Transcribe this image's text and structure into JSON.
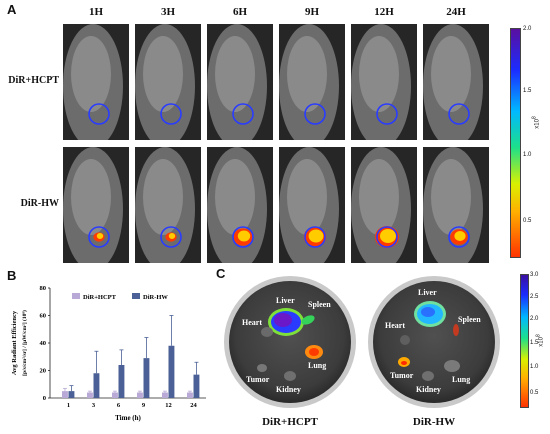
{
  "panel_a": {
    "letter": "A",
    "timepoints": [
      "1H",
      "3H",
      "6H",
      "9H",
      "12H",
      "24H"
    ],
    "rows": [
      {
        "label": "DiR+HCPT",
        "signal": [
          0.0,
          0.0,
          0.0,
          0.0,
          0.0,
          0.0
        ]
      },
      {
        "label": "DiR-HW",
        "signal": [
          0.2,
          0.2,
          0.7,
          0.9,
          1.0,
          0.6
        ]
      }
    ],
    "colorbar": {
      "ticks": [
        "2.0",
        "1.5",
        "1.0",
        "0.5"
      ],
      "unit": "x10",
      "exponent": "8"
    }
  },
  "panel_b": {
    "letter": "B",
    "chart_data": {
      "type": "bar",
      "categories": [
        "1",
        "3",
        "6",
        "9",
        "12",
        "24"
      ],
      "series": [
        {
          "name": "DiR+HCPT",
          "color": "#b9a9d6",
          "values": [
            5,
            4,
            4,
            4,
            4,
            4
          ],
          "errors": [
            2,
            1,
            1,
            1,
            1,
            1
          ]
        },
        {
          "name": "DiR-HW",
          "color": "#4a6096",
          "values": [
            5,
            18,
            24,
            29,
            38,
            17
          ],
          "errors": [
            4,
            16,
            11,
            15,
            22,
            9
          ]
        }
      ],
      "xlabel": "Time (h)",
      "ylabel": "Avg Radiant Efficiency",
      "ylabel2": "[p/s/cm²/sr] / [µW/cm²] (10⁸)",
      "ylim": [
        0,
        80
      ],
      "yticks": [
        "0",
        "20",
        "40",
        "60",
        "80"
      ]
    }
  },
  "panel_c": {
    "letter": "C",
    "dishes": [
      {
        "caption": "DiR+HCPT",
        "labels": {
          "liver": "Liver",
          "spleen": "Spleen",
          "heart": "Heart",
          "lung": "Lung",
          "tumor": "Tumor",
          "kidney": "Kidney"
        }
      },
      {
        "caption": "DiR-HW",
        "labels": {
          "liver": "Liver",
          "spleen": "Spleen",
          "heart": "Heart",
          "lung": "Lung",
          "tumor": "Tumor",
          "kidney": "Kidney"
        }
      }
    ],
    "colorbar": {
      "ticks": [
        "3.0",
        "2.5",
        "2.0",
        "1.5",
        "1.0",
        "0.5"
      ],
      "unit": "x10",
      "exponent": "8"
    }
  }
}
